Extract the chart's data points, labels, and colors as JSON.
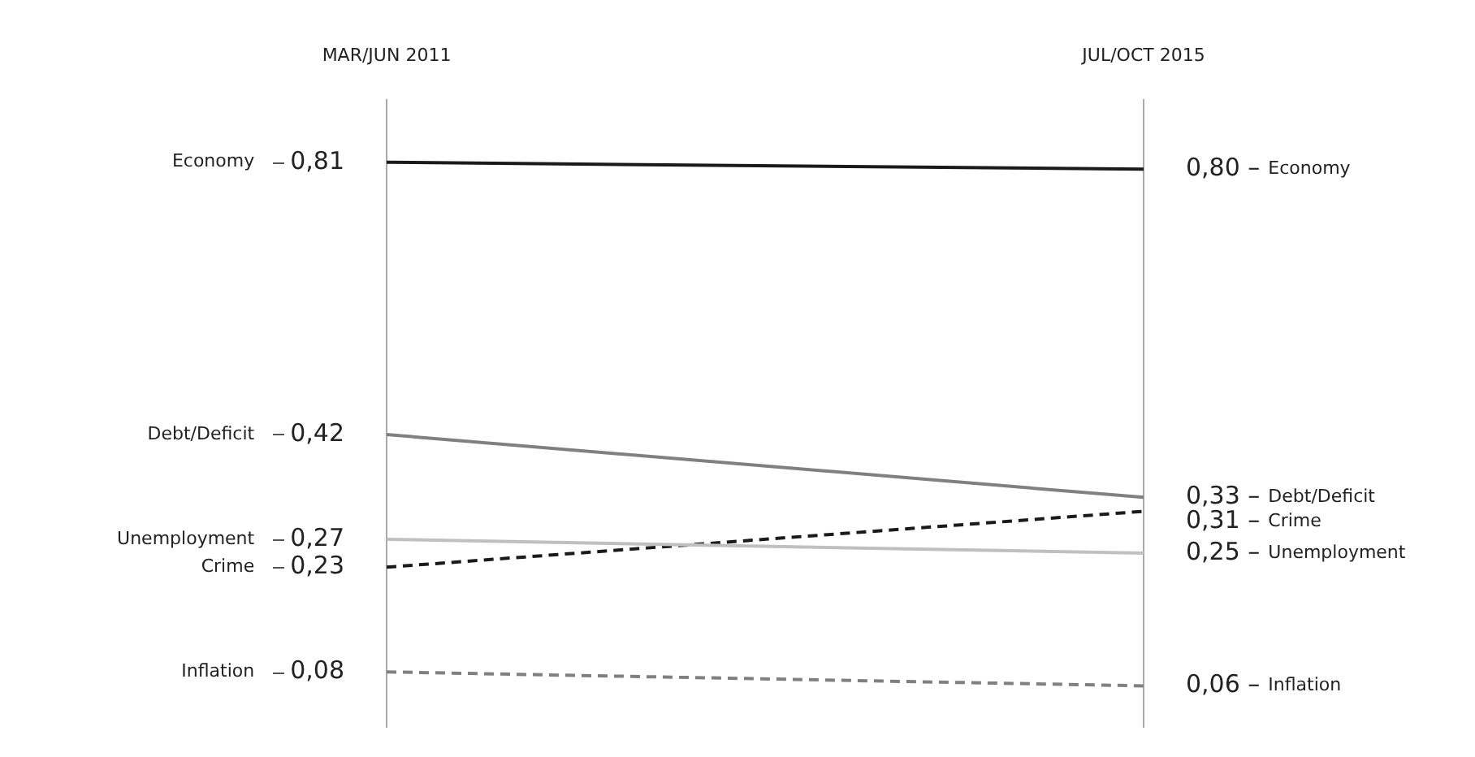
{
  "chart_data": {
    "type": "line",
    "categories": [
      "MAR/JUN 2011",
      "JUL/OCT 2015"
    ],
    "tick_labels": "x",
    "grid": "x",
    "legend": false,
    "marker": "none",
    "series": [
      {
        "name": "Economy",
        "color": "#1a1a1a",
        "values": [
          0.81,
          0.8
        ],
        "value_labels": [
          "0,81",
          "0,80 –"
        ],
        "line_style": "solid"
      },
      {
        "name": "Debt/Deficit",
        "color": "#808080",
        "values": [
          0.42,
          0.33
        ],
        "value_labels": [
          "0,42",
          "0,33 –"
        ],
        "line_style": "solid"
      },
      {
        "name": "Unemployment",
        "color": "#c0c0c0",
        "values": [
          0.27,
          0.25
        ],
        "value_labels": [
          "0,27",
          "0,25 –"
        ],
        "line_style": "solid"
      },
      {
        "name": "Crime",
        "color": "#1a1a1a",
        "values": [
          0.23,
          0.31
        ],
        "value_labels": [
          "0,23",
          "0,31 –"
        ],
        "line_style": "dashed"
      },
      {
        "name": "Inflation",
        "color": "#808080",
        "values": [
          0.08,
          0.06
        ],
        "value_labels": [
          "0,08",
          "0,06 –"
        ],
        "line_style": "dashed"
      }
    ]
  }
}
